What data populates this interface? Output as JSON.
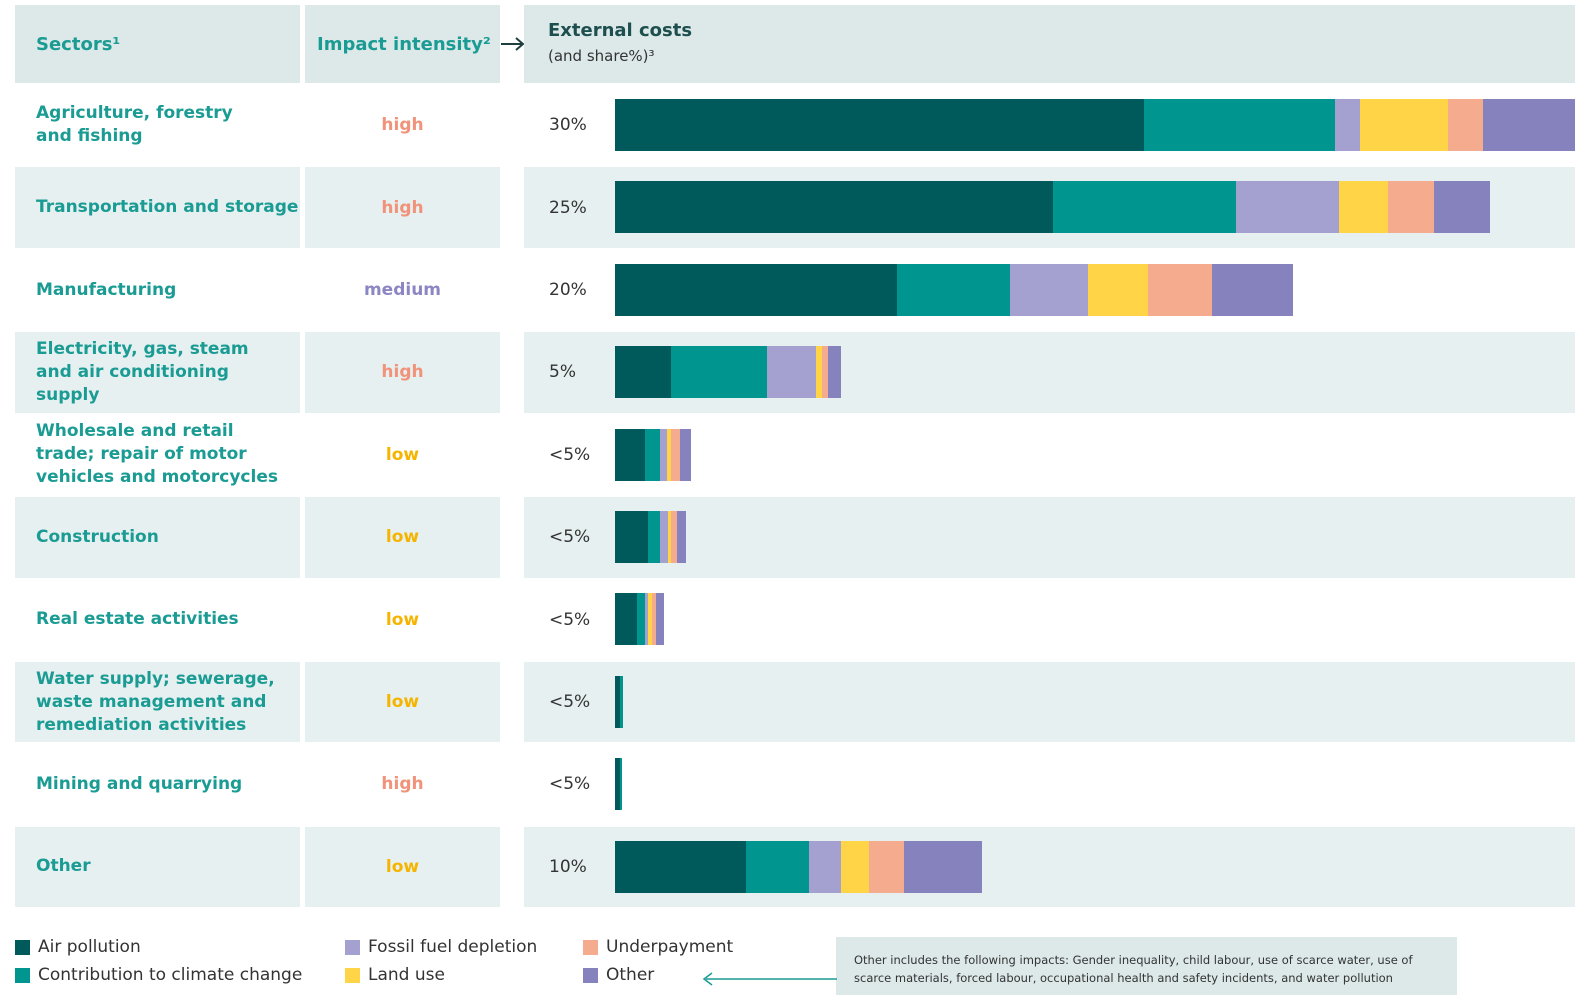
{
  "chart_data": {
    "type": "stacked-bar-table",
    "header": {
      "sectors": "Sectors¹",
      "intensity": "Impact intensity²",
      "costs": "External costs",
      "costs_sub": "(and share%)³"
    },
    "categories": [
      "Agriculture, forestry and fishing",
      "Transportation and storage",
      "Manufacturing",
      "Electricity, gas, steam and air conditioning supply",
      "Wholesale and retail trade; repair of motor vehicles and motorcycles",
      "Construction",
      "Real estate activities",
      "Water supply; sewerage, waste management and remediation activities",
      "Mining and quarrying",
      "Other"
    ],
    "intensity": [
      "high",
      "high",
      "medium",
      "high",
      "low",
      "low",
      "low",
      "low",
      "high",
      "low"
    ],
    "intensity_colors": {
      "high": "#f0937a",
      "medium": "#8b86c4",
      "low": "#f5b400"
    },
    "share_labels": [
      "30%",
      "25%",
      "20%",
      "5%",
      "<5%",
      "<5%",
      "<5%",
      "<5%",
      "<5%",
      "10%"
    ],
    "xlim": [
      0,
      27
    ],
    "series": [
      {
        "name": "Air pollution",
        "color": "#00595a",
        "values": [
          15.0,
          12.4,
          8.0,
          1.6,
          0.85,
          0.93,
          0.62,
          0.14,
          0.14,
          3.7
        ]
      },
      {
        "name": "Contribution to climate change",
        "color": "#00968f",
        "values": [
          5.4,
          5.2,
          3.2,
          2.7,
          0.42,
          0.34,
          0.23,
          0.08,
          0.06,
          1.8
        ]
      },
      {
        "name": "Fossil fuel depletion",
        "color": "#a4a0d0",
        "values": [
          0.7,
          2.9,
          2.2,
          1.4,
          0.2,
          0.23,
          0.08,
          0,
          0,
          0.9
        ]
      },
      {
        "name": "Land use",
        "color": "#ffd447",
        "values": [
          2.5,
          1.4,
          1.7,
          0.17,
          0.11,
          0.08,
          0.11,
          0,
          0,
          0.8
        ]
      },
      {
        "name": "Underpayment",
        "color": "#f5ab8e",
        "values": [
          1.0,
          1.3,
          1.8,
          0.17,
          0.25,
          0.17,
          0.11,
          0,
          0,
          1.0
        ]
      },
      {
        "name": "Other",
        "color": "#8682bd",
        "values": [
          5.4,
          1.6,
          2.3,
          0.37,
          0.31,
          0.25,
          0.25,
          0,
          0,
          2.2
        ]
      }
    ],
    "note": "Other includes the following impacts: Gender inequality, child labour, use of scarce water, use of scarce materials, forced labour, occupational health and safety incidents, and water pollution"
  }
}
